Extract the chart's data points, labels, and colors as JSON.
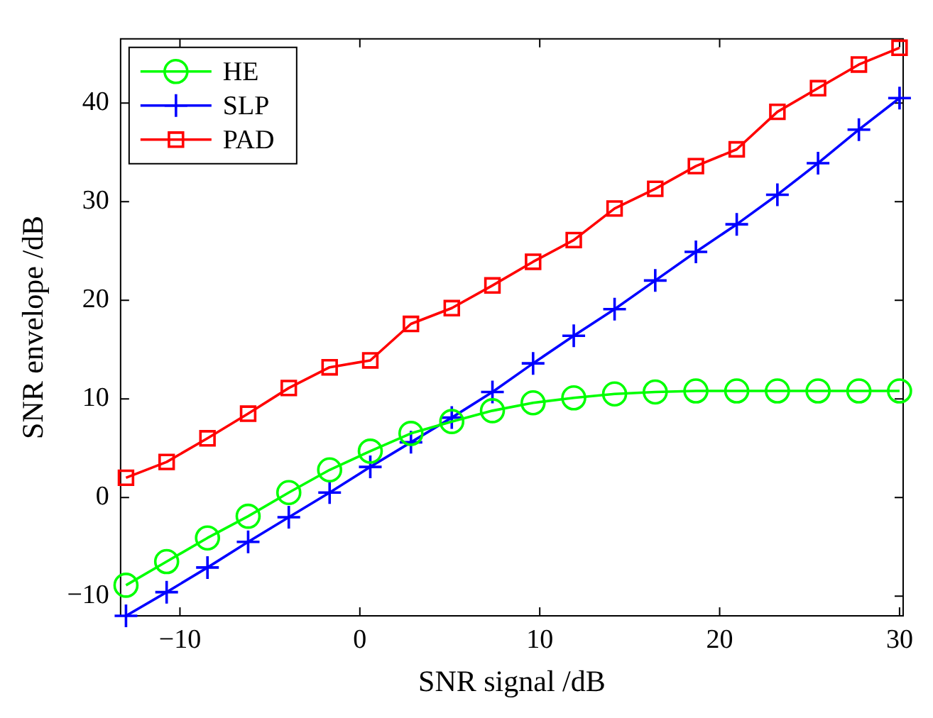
{
  "chart_data": {
    "type": "line",
    "xlabel": "SNR signal /dB",
    "ylabel": "SNR envelope /dB",
    "x": [
      -13,
      -10.74,
      -8.47,
      -6.21,
      -3.95,
      -1.68,
      0.58,
      2.84,
      5.11,
      7.37,
      9.63,
      11.89,
      14.16,
      16.42,
      18.68,
      20.95,
      23.21,
      25.47,
      27.74,
      30
    ],
    "series": [
      {
        "name": "HE",
        "color": "#00ff00",
        "marker": "circle",
        "values": [
          -8.9,
          -6.5,
          -4.1,
          -1.9,
          0.5,
          2.8,
          4.7,
          6.5,
          7.7,
          8.8,
          9.6,
          10.1,
          10.5,
          10.7,
          10.8,
          10.8,
          10.8,
          10.8,
          10.8,
          10.8
        ]
      },
      {
        "name": "SLP",
        "color": "#0000ff",
        "marker": "cross",
        "values": [
          -12,
          -9.6,
          -7.1,
          -4.5,
          -2,
          0.5,
          3.1,
          5.6,
          8.1,
          10.7,
          13.6,
          16.4,
          19.1,
          22,
          24.9,
          27.7,
          30.7,
          33.9,
          37.3,
          40.5
        ]
      },
      {
        "name": "PAD",
        "color": "#ff0000",
        "marker": "square",
        "values": [
          2,
          3.6,
          6,
          8.5,
          11.1,
          13.2,
          13.9,
          17.6,
          19.2,
          21.5,
          23.9,
          26.1,
          29.3,
          31.3,
          33.6,
          35.3,
          39.1,
          41.5,
          43.9,
          45.6
        ]
      }
    ],
    "xlim": [
      -13.3,
      30.2
    ],
    "xticks": [
      -10,
      0,
      10,
      20,
      30
    ],
    "ylim": [
      -12,
      46.5
    ],
    "yticks": [
      -10,
      0,
      10,
      20,
      30,
      40
    ],
    "grid": false,
    "legend": "top left",
    "line_style": "solid"
  }
}
